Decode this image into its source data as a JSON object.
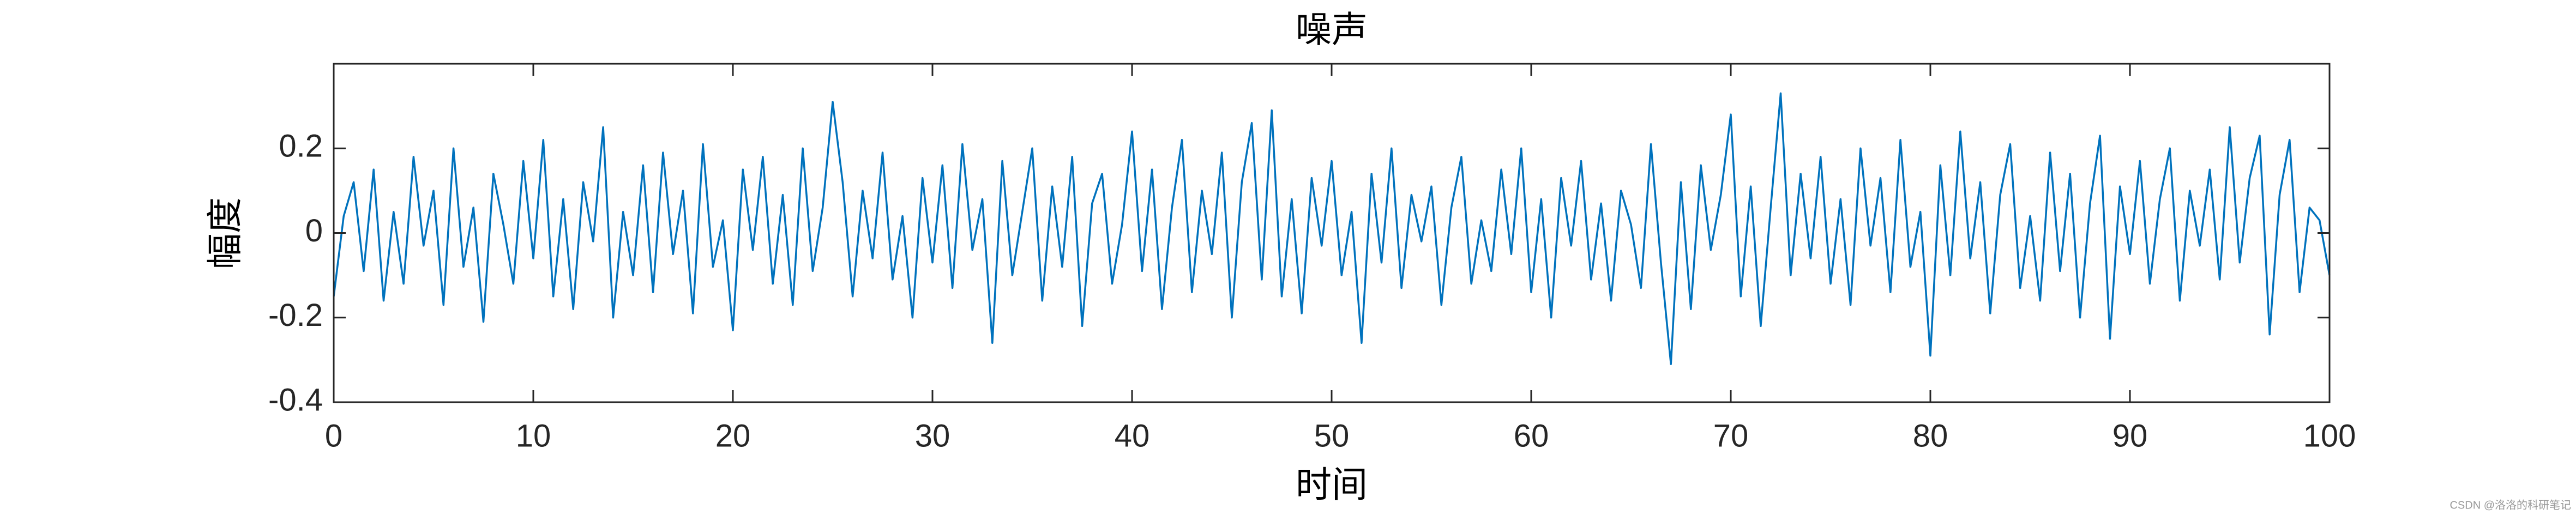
{
  "chart_data": {
    "type": "line",
    "title": "噪声",
    "xlabel": "时间",
    "ylabel": "幅度",
    "watermark": "CSDN @洛洛的科研笔记",
    "x": [
      0,
      0.5,
      1,
      1.5,
      2,
      2.5,
      3,
      3.5,
      4,
      4.5,
      5,
      5.5,
      6,
      6.5,
      7,
      7.5,
      8,
      8.5,
      9,
      9.5,
      10,
      10.5,
      11,
      11.5,
      12,
      12.5,
      13,
      13.5,
      14,
      14.5,
      15,
      15.5,
      16,
      16.5,
      17,
      17.5,
      18,
      18.5,
      19,
      19.5,
      20,
      20.5,
      21,
      21.5,
      22,
      22.5,
      23,
      23.5,
      24,
      24.5,
      25,
      25.5,
      26,
      26.5,
      27,
      27.5,
      28,
      28.5,
      29,
      29.5,
      30,
      30.5,
      31,
      31.5,
      32,
      32.5,
      33,
      33.5,
      34,
      34.5,
      35,
      35.5,
      36,
      36.5,
      37,
      37.5,
      38,
      38.5,
      39,
      39.5,
      40,
      40.5,
      41,
      41.5,
      42,
      42.5,
      43,
      43.5,
      44,
      44.5,
      45,
      45.5,
      46,
      46.5,
      47,
      47.5,
      48,
      48.5,
      49,
      49.5,
      50,
      50.5,
      51,
      51.5,
      52,
      52.5,
      53,
      53.5,
      54,
      54.5,
      55,
      55.5,
      56,
      56.5,
      57,
      57.5,
      58,
      58.5,
      59,
      59.5,
      60,
      60.5,
      61,
      61.5,
      62,
      62.5,
      63,
      63.5,
      64,
      64.5,
      65,
      65.5,
      66,
      66.5,
      67,
      67.5,
      68,
      68.5,
      69,
      69.5,
      70,
      70.5,
      71,
      71.5,
      72,
      72.5,
      73,
      73.5,
      74,
      74.5,
      75,
      75.5,
      76,
      76.5,
      77,
      77.5,
      78,
      78.5,
      79,
      79.5,
      80,
      80.5,
      81,
      81.5,
      82,
      82.5,
      83,
      83.5,
      84,
      84.5,
      85,
      85.5,
      86,
      86.5,
      87,
      87.5,
      88,
      88.5,
      89,
      89.5,
      90,
      90.5,
      91,
      91.5,
      92,
      92.5,
      93,
      93.5,
      94,
      94.5,
      95,
      95.5,
      96,
      96.5,
      97,
      97.5,
      98,
      98.5,
      99,
      99.5,
      100
    ],
    "series": [
      {
        "color": "#0072BD",
        "values": [
          -0.15,
          0.04,
          0.12,
          -0.09,
          0.15,
          -0.16,
          0.05,
          -0.12,
          0.18,
          -0.03,
          0.1,
          -0.17,
          0.2,
          -0.08,
          0.06,
          -0.21,
          0.14,
          0.02,
          -0.12,
          0.17,
          -0.06,
          0.22,
          -0.15,
          0.08,
          -0.18,
          0.12,
          -0.02,
          0.25,
          -0.2,
          0.05,
          -0.1,
          0.16,
          -0.14,
          0.19,
          -0.05,
          0.1,
          -0.19,
          0.21,
          -0.08,
          0.03,
          -0.23,
          0.15,
          -0.04,
          0.18,
          -0.12,
          0.09,
          -0.17,
          0.2,
          -0.09,
          0.06,
          0.31,
          0.12,
          -0.15,
          0.1,
          -0.06,
          0.19,
          -0.11,
          0.04,
          -0.2,
          0.13,
          -0.07,
          0.16,
          -0.13,
          0.21,
          -0.04,
          0.08,
          -0.26,
          0.17,
          -0.1,
          0.05,
          0.2,
          -0.16,
          0.11,
          -0.08,
          0.18,
          -0.22,
          0.07,
          0.14,
          -0.12,
          0.02,
          0.24,
          -0.09,
          0.15,
          -0.18,
          0.06,
          0.22,
          -0.14,
          0.1,
          -0.05,
          0.19,
          -0.2,
          0.12,
          0.26,
          -0.11,
          0.29,
          -0.15,
          0.08,
          -0.19,
          0.13,
          -0.03,
          0.17,
          -0.1,
          0.05,
          -0.26,
          0.14,
          -0.07,
          0.2,
          -0.13,
          0.09,
          -0.02,
          0.11,
          -0.17,
          0.06,
          0.18,
          -0.12,
          0.03,
          -0.09,
          0.15,
          -0.05,
          0.2,
          -0.14,
          0.08,
          -0.2,
          0.13,
          -0.03,
          0.17,
          -0.11,
          0.07,
          -0.16,
          0.1,
          0.02,
          -0.13,
          0.21,
          -0.07,
          -0.31,
          0.12,
          -0.18,
          0.16,
          -0.04,
          0.09,
          0.28,
          -0.15,
          0.11,
          -0.22,
          0.06,
          0.33,
          -0.1,
          0.14,
          -0.06,
          0.18,
          -0.12,
          0.08,
          -0.17,
          0.2,
          -0.03,
          0.13,
          -0.14,
          0.22,
          -0.08,
          0.05,
          -0.29,
          0.16,
          -0.1,
          0.24,
          -0.06,
          0.12,
          -0.19,
          0.09,
          0.21,
          -0.13,
          0.04,
          -0.16,
          0.19,
          -0.09,
          0.14,
          -0.2,
          0.07,
          0.23,
          -0.25,
          0.11,
          -0.05,
          0.17,
          -0.12,
          0.08,
          0.2,
          -0.16,
          0.1,
          -0.03,
          0.15,
          -0.11,
          0.25,
          -0.07,
          0.13,
          0.23,
          -0.24,
          0.09,
          0.22,
          -0.14,
          0.06,
          0.03,
          -0.1
        ]
      }
    ],
    "xlim": [
      0,
      100
    ],
    "xticks": [
      0,
      10,
      20,
      30,
      40,
      50,
      60,
      70,
      80,
      90,
      100
    ],
    "ylim": [
      -0.4,
      0.4
    ],
    "yticks": [
      -0.4,
      -0.2,
      0,
      0.2
    ],
    "grid": false
  }
}
